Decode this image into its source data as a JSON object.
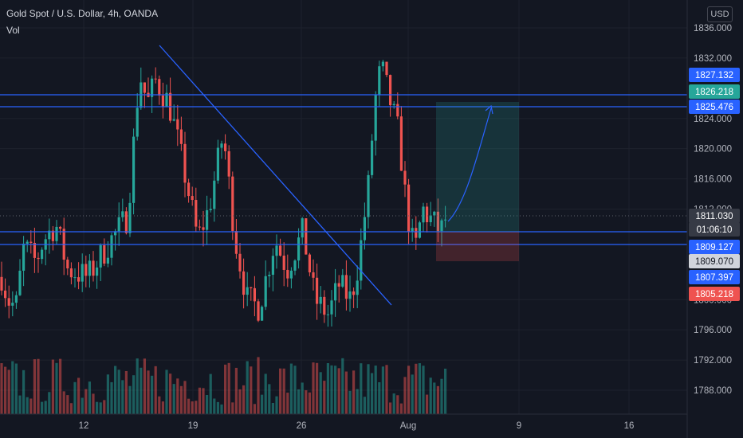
{
  "header": {
    "symbol": "Gold Spot / U.S. Dollar, 4h, OANDA",
    "volume_label": "Vol",
    "currency": "USD"
  },
  "colors": {
    "background": "#131722",
    "up": "#26a69a",
    "down": "#ef5350",
    "line": "#2962ff",
    "grid": "#1e222d"
  },
  "chart_data": {
    "type": "candlestick",
    "price_ticks": [
      1836.0,
      1832.0,
      1824.0,
      1820.0,
      1816.0,
      1812.0,
      1800.0,
      1796.0,
      1792.0,
      1788.0
    ],
    "date_ticks": [
      "12",
      "19",
      "26",
      "Aug",
      "9",
      "16"
    ],
    "ylim": [
      1784.2,
      1838.6
    ],
    "horizontal_lines": [
      1826.218,
      1825.476,
      1809.127,
      1807.397
    ],
    "price_labels": [
      {
        "text": "1827.132",
        "bg": "#2962ff",
        "fg": "#ffffff"
      },
      {
        "text": "1826.218",
        "bg": "#26a69a",
        "fg": "#ffffff"
      },
      {
        "text": "1825.476",
        "bg": "#2962ff",
        "fg": "#ffffff"
      },
      {
        "text": "1811.030",
        "bg": "#363a45",
        "fg": "#ffffff"
      },
      {
        "text": "01:06:10",
        "bg": "#363a45",
        "fg": "#ffffff"
      },
      {
        "text": "1809.127",
        "bg": "#2962ff",
        "fg": "#ffffff"
      },
      {
        "text": "1809.070",
        "bg": "#d1d4dc",
        "fg": "#131722"
      },
      {
        "text": "1807.397",
        "bg": "#2962ff",
        "fg": "#ffffff"
      },
      {
        "text": "1805.218",
        "bg": "#ef5350",
        "fg": "#ffffff"
      }
    ],
    "position_tool": {
      "target": 1826.218,
      "entry": 1809.127,
      "stop": 1805.218
    },
    "countdown": "01:06:10",
    "last_price": 1811.03
  }
}
